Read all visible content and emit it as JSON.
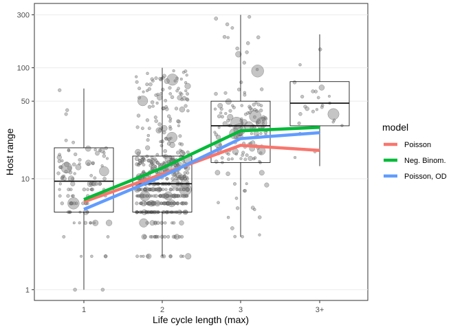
{
  "chart_data": {
    "type": "boxplot",
    "xlabel": "Life cycle length (max)",
    "ylabel": "Host range",
    "y_scale": "log10",
    "ylim": [
      0.8,
      380
    ],
    "y_ticks": [
      1,
      10,
      50,
      100,
      300
    ],
    "y_tick_labels": [
      "1",
      "10",
      "50",
      "100",
      "300"
    ],
    "categories": [
      "1",
      "2",
      "3",
      "3+"
    ],
    "grid": true,
    "legend_position": "right",
    "boxes": [
      {
        "category": "1",
        "min": 1,
        "q1": 5,
        "median": 9.5,
        "q3": 19,
        "max": 65
      },
      {
        "category": "2",
        "min": 2,
        "q1": 5,
        "median": 9,
        "q3": 16,
        "max": 100
      },
      {
        "category": "3",
        "min": 3,
        "q1": 14,
        "median": 30,
        "q3": 50,
        "max": 300
      },
      {
        "category": "3+",
        "min": 13,
        "q1": 30,
        "median": 48,
        "q3": 75,
        "max": 200
      }
    ],
    "legend_title": "model",
    "series": [
      {
        "name": "Poisson",
        "color": "#F8766D",
        "values": [
          6.2,
          11,
          20,
          18
        ]
      },
      {
        "name": "Neg. Binom.",
        "color": "#00BA38",
        "values": [
          6.5,
          12.5,
          27,
          29
        ]
      },
      {
        "name": "Poisson, OD",
        "color": "#619CFF",
        "values": [
          5.3,
          10.5,
          23,
          26
        ]
      }
    ],
    "colors": {
      "points": "#7f7f7f",
      "box": "#000000",
      "grid": "#ebebeb"
    }
  }
}
